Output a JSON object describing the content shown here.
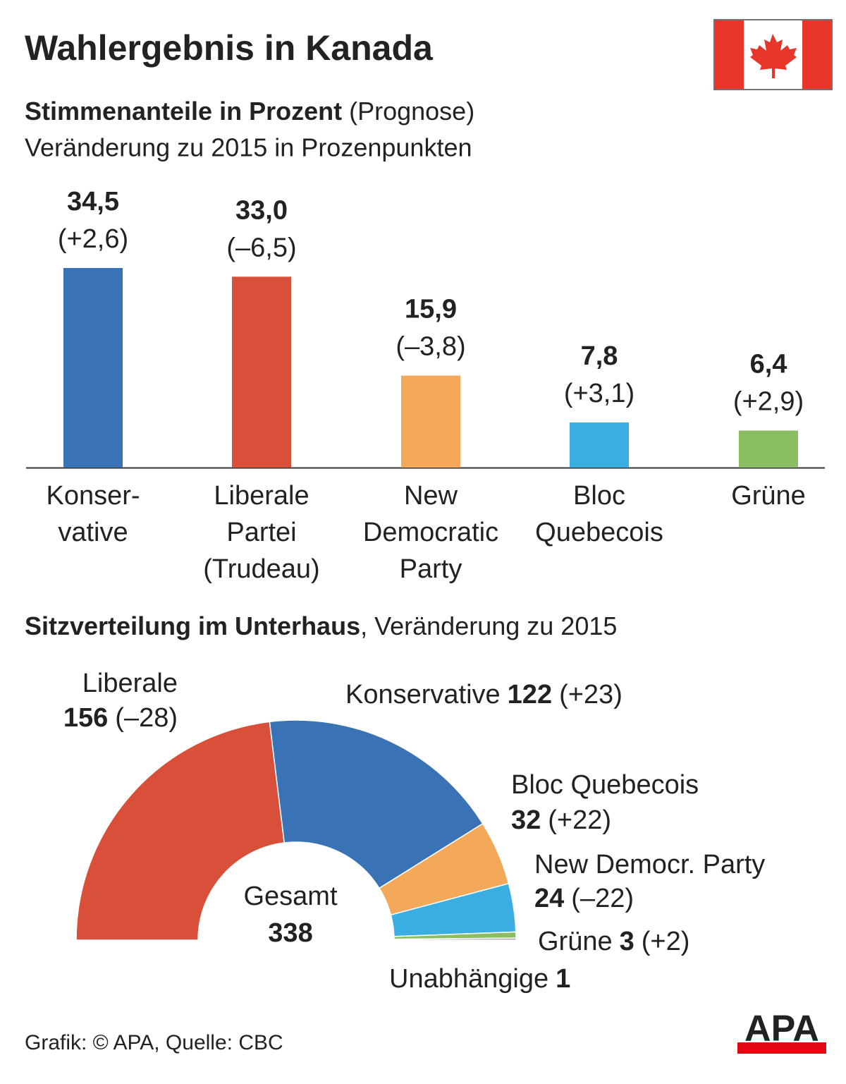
{
  "title": "Wahlergebnis in Kanada",
  "source": "Grafik: © APA, Quelle: CBC",
  "logo": "APA",
  "chart_data": [
    {
      "type": "bar",
      "title": "Stimmenanteile in Prozent",
      "title_note": "(Prognose)",
      "subtitle": "Veränderung zu 2015 in Prozenpunkten",
      "categories": [
        "Konser-\nvative",
        "Liberale\nPartei\n(Trudeau)",
        "New\nDemocratic\nParty",
        "Bloc\nQuebecois",
        "Grüne"
      ],
      "values": [
        34.5,
        33.0,
        15.9,
        7.8,
        6.4
      ],
      "value_labels": [
        "34,5",
        "33,0",
        "15,9",
        "7,8",
        "6,4"
      ],
      "changes": [
        2.6,
        -6.5,
        -3.8,
        3.1,
        2.9
      ],
      "change_labels": [
        "(+2,6)",
        "(–6,5)",
        "(–3,8)",
        "(+3,1)",
        "(+2,9)"
      ],
      "colors": [
        "#3a73b5",
        "#d9503a",
        "#f4a85a",
        "#3aaee0",
        "#8bbd63"
      ]
    },
    {
      "type": "half-donut",
      "title": "Sitzverteilung im Unterhaus",
      "title_note": ", Veränderung zu 2015",
      "categories": [
        "Liberale",
        "Konservative",
        "Bloc Quebecois",
        "New Democr. Party",
        "Grüne",
        "Unabhängige"
      ],
      "values": [
        156,
        122,
        32,
        24,
        3,
        1
      ],
      "changes": [
        -28,
        23,
        22,
        -22,
        2,
        null
      ],
      "change_labels": [
        "(–28)",
        "(+23)",
        "(+22)",
        "(–22)",
        "(+2)",
        null
      ],
      "colors": [
        "#d9503a",
        "#3a73b5",
        "#f4a85a",
        "#3aaee0",
        "#8bbd63",
        "#9a9a9a"
      ],
      "center_label": "Gesamt",
      "total": 338
    }
  ]
}
